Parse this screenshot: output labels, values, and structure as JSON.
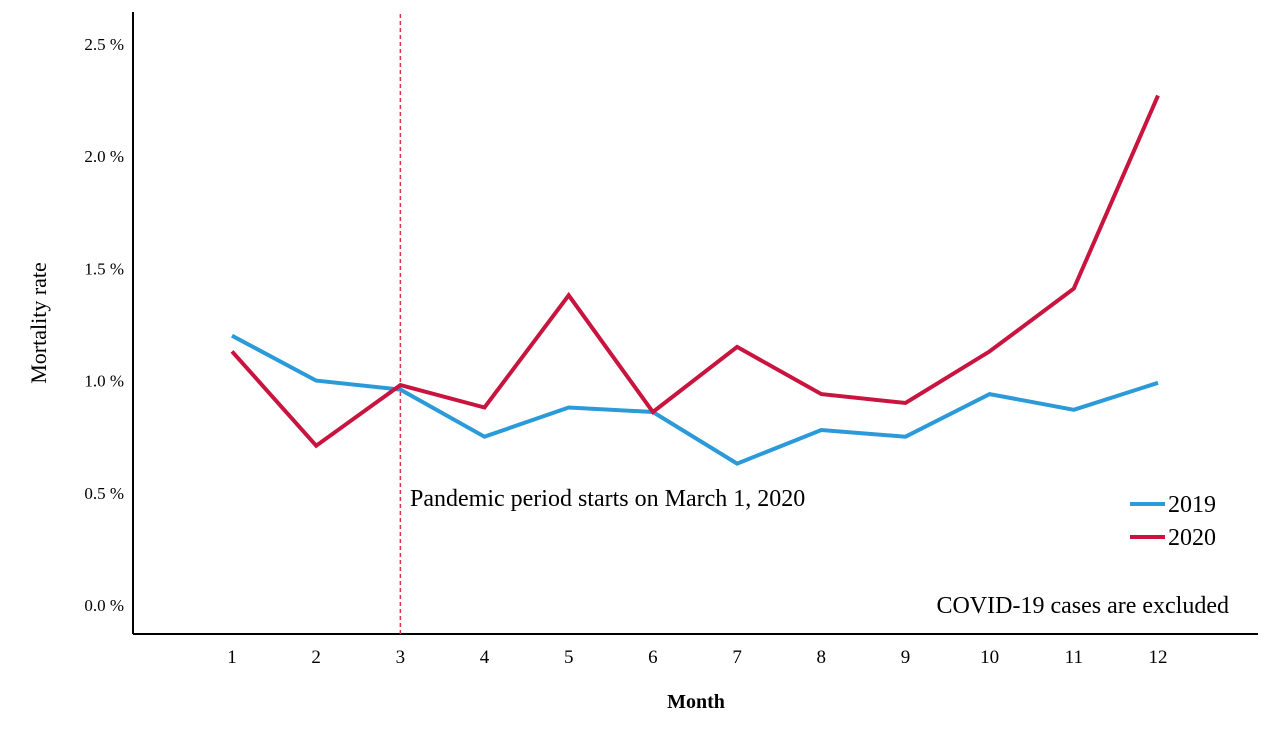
{
  "chart_data": {
    "type": "line",
    "xlabel": "Month",
    "ylabel": "Mortality  rate",
    "x": [
      1,
      2,
      3,
      4,
      5,
      6,
      7,
      8,
      9,
      10,
      11,
      12
    ],
    "x_tick_labels": [
      "1",
      "2",
      "3",
      "4",
      "5",
      "6",
      "7",
      "8",
      "9",
      "10",
      "11",
      "12"
    ],
    "y_ticks": [
      0.0,
      0.5,
      1.0,
      1.5,
      2.0,
      2.5
    ],
    "y_tick_labels": [
      "0.0 %",
      "0.5 %",
      "1.0 %",
      "1.5 %",
      "2.0 %",
      "2.5 %"
    ],
    "ylim": [
      0,
      2.5
    ],
    "grid": false,
    "legend_position": "bottom-right",
    "series": [
      {
        "name": "2019",
        "color": "#2b9ad8",
        "values": [
          1.2,
          1.0,
          0.96,
          0.75,
          0.88,
          0.86,
          0.63,
          0.78,
          0.75,
          0.94,
          0.87,
          0.99
        ]
      },
      {
        "name": "2020",
        "color": "#c8143f",
        "values": [
          1.13,
          0.71,
          0.98,
          0.88,
          1.38,
          0.86,
          1.15,
          0.94,
          0.9,
          1.13,
          1.41,
          2.27
        ]
      }
    ],
    "reference_line": {
      "x": 3,
      "color": "#e0304a",
      "label": "Pandemic period starts on March 1, 2020"
    },
    "note": "COVID-19 cases are excluded"
  }
}
